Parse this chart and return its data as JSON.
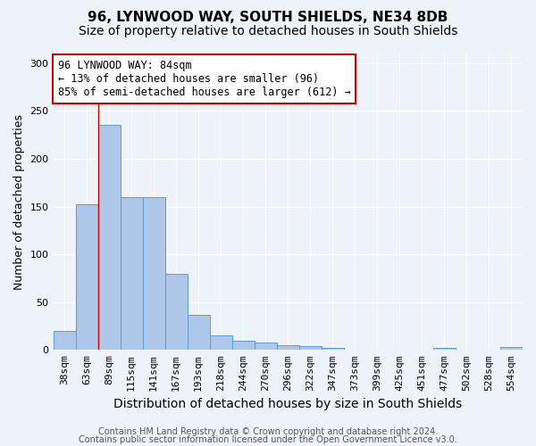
{
  "title": "96, LYNWOOD WAY, SOUTH SHIELDS, NE34 8DB",
  "subtitle": "Size of property relative to detached houses in South Shields",
  "xlabel": "Distribution of detached houses by size in South Shields",
  "ylabel": "Number of detached properties",
  "footer1": "Contains HM Land Registry data © Crown copyright and database right 2024.",
  "footer2": "Contains public sector information licensed under the Open Government Licence v3.0.",
  "bin_labels": [
    "38sqm",
    "63sqm",
    "89sqm",
    "115sqm",
    "141sqm",
    "167sqm",
    "193sqm",
    "218sqm",
    "244sqm",
    "270sqm",
    "296sqm",
    "322sqm",
    "347sqm",
    "373sqm",
    "399sqm",
    "425sqm",
    "451sqm",
    "477sqm",
    "502sqm",
    "528sqm",
    "554sqm"
  ],
  "bar_heights": [
    20,
    152,
    235,
    160,
    160,
    80,
    37,
    15,
    10,
    8,
    5,
    4,
    2,
    0,
    0,
    0,
    0,
    2,
    0,
    0,
    3
  ],
  "bar_color": "#aec6e8",
  "bar_edge_color": "#5b9bd5",
  "red_line_color": "#cc0000",
  "red_line_x": 1.5,
  "annotation_text": "96 LYNWOOD WAY: 84sqm\n← 13% of detached houses are smaller (96)\n85% of semi-detached houses are larger (612) →",
  "annotation_box_color": "white",
  "annotation_box_edge_color": "#cc0000",
  "ylim": [
    0,
    310
  ],
  "yticks": [
    0,
    50,
    100,
    150,
    200,
    250,
    300
  ],
  "background_color": "#eef2f9",
  "grid_color": "white",
  "title_fontsize": 11,
  "subtitle_fontsize": 10,
  "xlabel_fontsize": 10,
  "ylabel_fontsize": 9,
  "tick_fontsize": 8,
  "footer_fontsize": 7,
  "annot_fontsize": 8.5
}
